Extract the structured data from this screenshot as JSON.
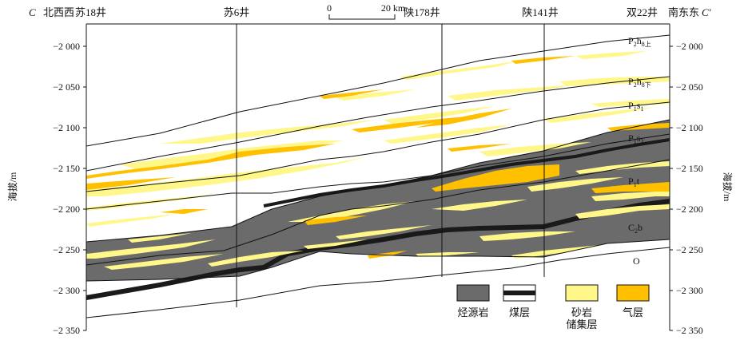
{
  "section": {
    "left_end": "C",
    "right_end": "C′",
    "left_direction": "北西西",
    "right_direction": "南东东"
  },
  "wells": [
    {
      "name": "苏18井"
    },
    {
      "name": "苏6井"
    },
    {
      "name": "陕178井"
    },
    {
      "name": "陕141井"
    },
    {
      "name": "双22井"
    }
  ],
  "scale_bar": {
    "start": "0",
    "end": "20 km"
  },
  "y_axis": {
    "label": "海拔/m",
    "ticks": [
      "−2 000",
      "−2 050",
      "−2 100",
      "−2 150",
      "−2 200",
      "−2 250",
      "−2 300",
      "−2 350"
    ]
  },
  "units": [
    {
      "code": "P2h8上"
    },
    {
      "code": "P2h8下"
    },
    {
      "code": "P1s1"
    },
    {
      "code": "P1s2"
    },
    {
      "code": "P1t"
    },
    {
      "code": "C2b"
    },
    {
      "code": "O"
    }
  ],
  "legend": [
    {
      "label": "烃源岩",
      "color": "#6b6b6b"
    },
    {
      "label": "煤层",
      "color": "#1a1a1a"
    },
    {
      "label": "砂岩储集层",
      "color": "#fff78a"
    },
    {
      "label": "气层",
      "color": "#ffc000"
    }
  ],
  "colors": {
    "source_rock": "#6b6b6b",
    "coal": "#1a1a1a",
    "sandstone": "#fff78a",
    "gas": "#ffc000"
  }
}
